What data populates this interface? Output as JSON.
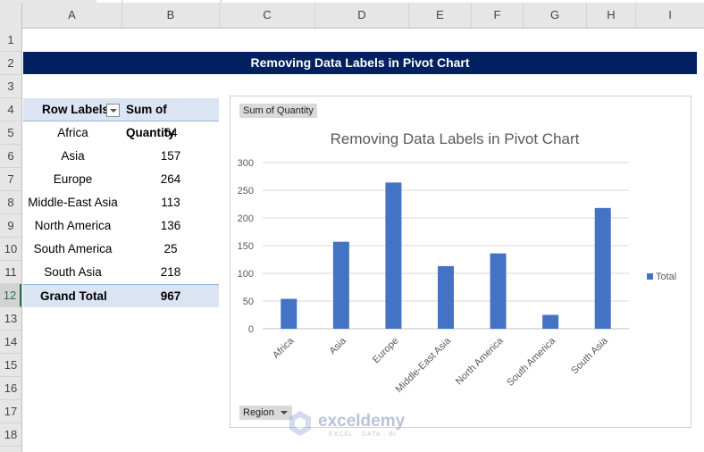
{
  "columns": [
    "A",
    "B",
    "C",
    "D",
    "E",
    "F",
    "G",
    "H",
    "I"
  ],
  "rows": [
    "1",
    "2",
    "3",
    "4",
    "5",
    "6",
    "7",
    "8",
    "9",
    "10",
    "11",
    "12",
    "13",
    "14",
    "15",
    "16",
    "17",
    "18"
  ],
  "selected_row": "12",
  "banner_title": "Removing Data Labels in Pivot Chart",
  "pivot": {
    "header_label": "Row Labels",
    "header_value": "Sum of Quantity",
    "rows": [
      {
        "label": "Africa",
        "value": "54"
      },
      {
        "label": "Asia",
        "value": "157"
      },
      {
        "label": "Europe",
        "value": "264"
      },
      {
        "label": "Middle-East Asia",
        "value": "113"
      },
      {
        "label": "North America",
        "value": "136"
      },
      {
        "label": "South America",
        "value": "25"
      },
      {
        "label": "South Asia",
        "value": "218"
      }
    ],
    "total_label": "Grand Total",
    "total_value": "967"
  },
  "chart_field_value": "Sum of Quantity",
  "chart_field_axis": "Region",
  "watermark": {
    "name": "exceldemy",
    "tagline": "EXCEL · DATA · BI"
  },
  "colors": {
    "bar": "#4472c4",
    "banner": "#002060",
    "pivot_header": "#dbe4f2"
  },
  "chart_data": {
    "type": "bar",
    "title": "Removing Data Labels in Pivot Chart",
    "categories": [
      "Africa",
      "Asia",
      "Europe",
      "Middle-East Asia",
      "North America",
      "South America",
      "South Asia"
    ],
    "series": [
      {
        "name": "Total",
        "values": [
          54,
          157,
          264,
          113,
          136,
          25,
          218
        ]
      }
    ],
    "ylim": [
      0,
      300
    ],
    "yticks": [
      "0",
      "50",
      "100",
      "150",
      "200",
      "250",
      "300"
    ],
    "grid": true,
    "legend": "right",
    "xlabel": "",
    "ylabel": ""
  }
}
